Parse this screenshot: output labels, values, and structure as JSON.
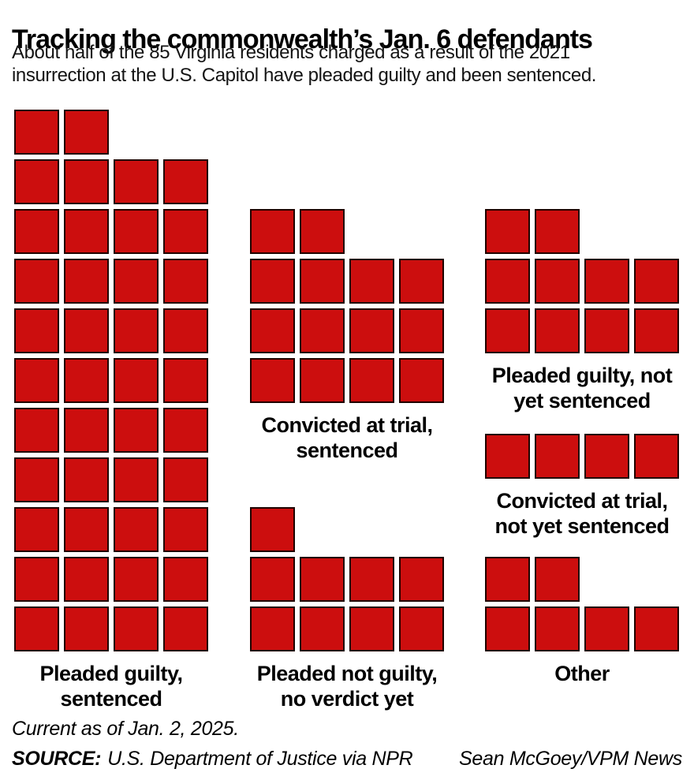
{
  "header": {
    "title": "Tracking the commonwealth’s Jan. 6 defendants",
    "subtitle_lines": [
      "About half of the 85 Virginia residents charged as a result of the 2021",
      "insurrection at the U.S. Capitol have pleaded guilty and been sentenced."
    ]
  },
  "colors": {
    "square_fill": "#cc0e0e",
    "square_border": "#200300",
    "text": "#000000"
  },
  "chart_data": {
    "type": "waffle",
    "unit": "1 square = 1 defendant",
    "total": 85,
    "title": "Tracking the commonwealth’s Jan. 6 defendants",
    "categories": [
      "Pleaded guilty, sentenced",
      "Convicted at trial, sentenced",
      "Pleaded guilty, not yet sentenced",
      "Convicted at trial, not yet sentenced",
      "Pleaded not guilty, no verdict yet",
      "Other"
    ],
    "values": [
      42,
      14,
      10,
      4,
      9,
      6
    ],
    "legend_position": "labels-below-groups",
    "grid": false,
    "groups": [
      {
        "label_lines": [
          "Pleaded guilty,",
          "sentenced"
        ],
        "count": 42,
        "rows": [
          2,
          4,
          4,
          4,
          4,
          4,
          4,
          4,
          4,
          4,
          4
        ]
      },
      {
        "label_lines": [
          "Convicted at trial,",
          "sentenced"
        ],
        "count": 14,
        "rows": [
          2,
          4,
          4,
          4
        ]
      },
      {
        "label_lines": [
          "Pleaded guilty, not",
          "yet sentenced"
        ],
        "count": 10,
        "rows": [
          2,
          4,
          4
        ]
      },
      {
        "label_lines": [
          "Convicted at trial,",
          "not yet sentenced"
        ],
        "count": 4,
        "rows": [
          4
        ]
      },
      {
        "label_lines": [
          "Pleaded not guilty,",
          "no verdict yet"
        ],
        "count": 9,
        "rows": [
          1,
          4,
          4
        ]
      },
      {
        "label_lines": [
          "Other"
        ],
        "count": 6,
        "rows": [
          2,
          4
        ]
      }
    ]
  },
  "footer": {
    "current_as_of": "Current as of Jan. 2, 2025.",
    "source_label": "SOURCE:",
    "source_text": "U.S. Department of Justice via NPR",
    "credit": "Sean McGoey/VPM News"
  }
}
